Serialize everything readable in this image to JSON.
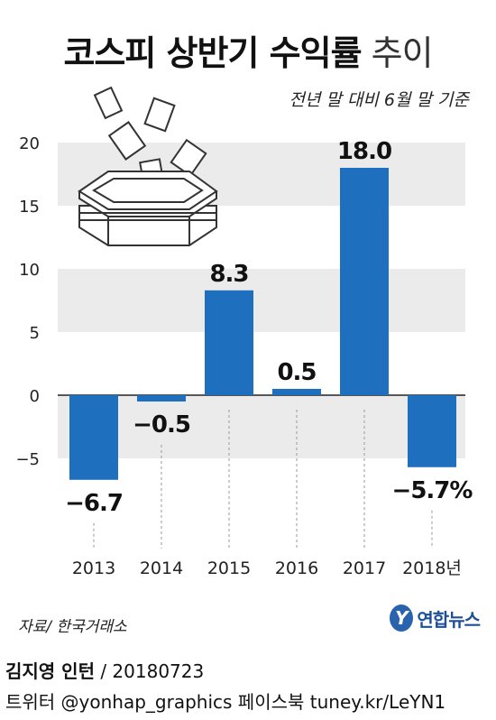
{
  "header": {
    "title_bold": "코스피 상반기 수익률",
    "title_light": "추이",
    "subtitle": "전년 말 대비 6월 말 기준"
  },
  "chart_data": {
    "type": "bar",
    "categories": [
      "2013",
      "2014",
      "2015",
      "2016",
      "2017",
      "2018년"
    ],
    "values": [
      -6.7,
      -0.5,
      8.3,
      0.5,
      18.0,
      -5.7
    ],
    "value_labels": [
      "−6.7",
      "−0.5",
      "8.3",
      "0.5",
      "18.0",
      "−5.7%"
    ],
    "yticks": [
      20,
      15,
      10,
      5,
      0,
      -5
    ],
    "ytick_labels": [
      "20",
      "15",
      "10",
      "5",
      "0",
      "−5"
    ],
    "ylim": [
      -5,
      20
    ],
    "grid": "banded",
    "legend": "none",
    "colors": {
      "bar": "#1f6fbf",
      "band": "#ebebeb"
    }
  },
  "footer": {
    "source": "자료/ 한국거래소",
    "logo_mark": "Y",
    "logo_text": "연합뉴스",
    "credit_name": "김지영 인턴",
    "credit_date": " / 20180723",
    "social": "트위터 @yonhap_graphics  페이스북 tuney.kr/LeYN1"
  }
}
